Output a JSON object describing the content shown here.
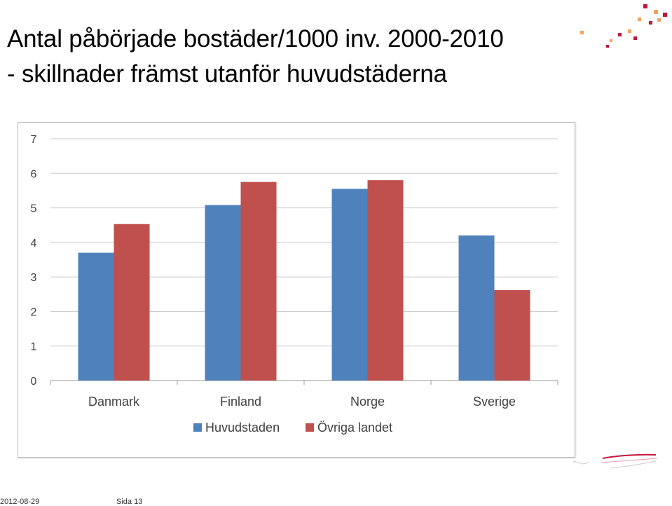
{
  "slide": {
    "title": "Antal påbörjade bostäder/1000 inv. 2000-2010",
    "subtitle": "- skillnader främst utanför huvudstäderna",
    "date": "2012-08-29",
    "page": "Sida 13"
  },
  "colors": {
    "series1": "#4f81bd",
    "series2": "#c0504d",
    "grid": "#c8c8c8",
    "axis_text": "#404040",
    "logo_red": "#c0183c",
    "logo_orange": "#f2a35e"
  },
  "chart_data": {
    "type": "bar",
    "categories": [
      "Danmark",
      "Finland",
      "Norge",
      "Sverige"
    ],
    "series": [
      {
        "name": "Huvudstaden",
        "values": [
          3.7,
          5.08,
          5.55,
          4.2
        ]
      },
      {
        "name": "Övriga landet",
        "values": [
          4.53,
          5.75,
          5.8,
          2.62
        ]
      }
    ],
    "title": "",
    "xlabel": "",
    "ylabel": "",
    "ylim": [
      0,
      7
    ],
    "yticks": [
      0,
      1,
      2,
      3,
      4,
      5,
      6,
      7
    ],
    "grid": true,
    "legend": "bottom"
  }
}
